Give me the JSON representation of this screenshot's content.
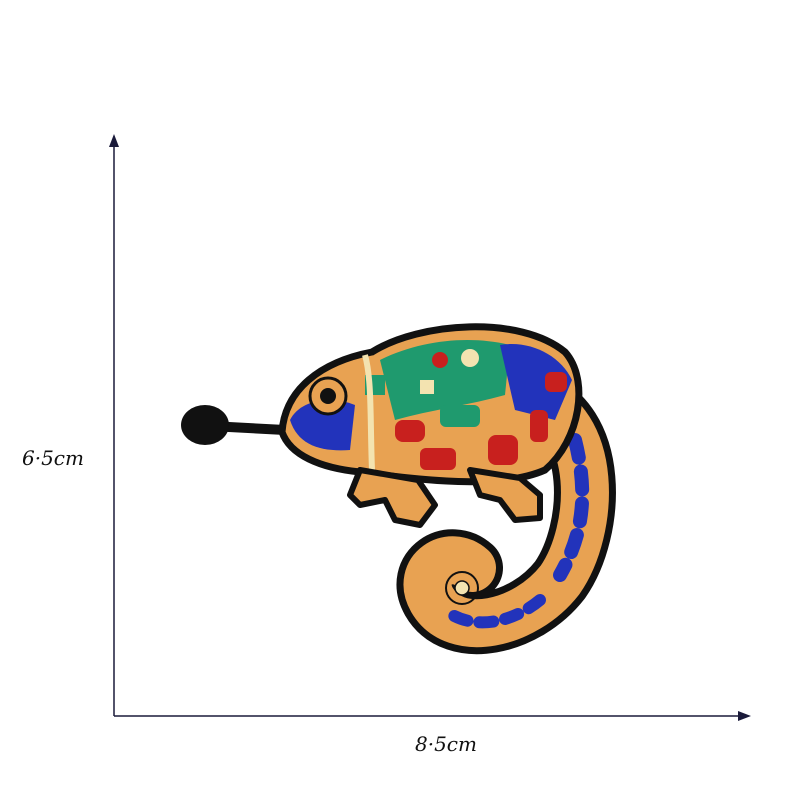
{
  "dimensions": {
    "height_label": "6·5cm",
    "width_label": "8·5cm"
  },
  "colors": {
    "arrow": "#1a1a3a",
    "outline": "#111111",
    "orange": "#e8a252",
    "blue": "#2233bb",
    "green": "#1f9a6e",
    "red": "#c8201e",
    "cream": "#f3e3b0"
  },
  "image": {
    "subject": "embroidered-chameleon-patch"
  }
}
